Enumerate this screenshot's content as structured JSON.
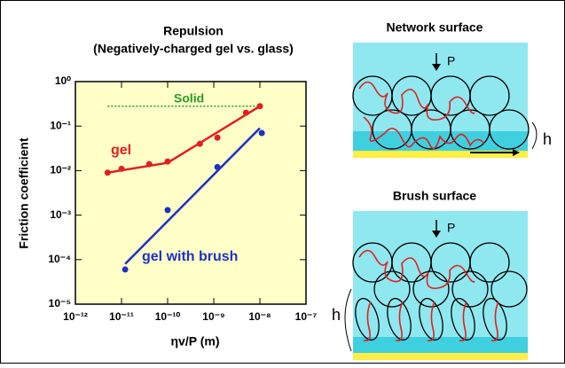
{
  "chart_data": {
    "type": "scatter",
    "title": "Repulsion",
    "subtitle": "(Negatively-charged gel vs. glass)",
    "x_label": "ηv/P (m)",
    "y_label": "Friction coefficient",
    "xscale": "log",
    "yscale": "log",
    "xlim": [
      1e-12,
      1e-07
    ],
    "ylim": [
      1e-05,
      1
    ],
    "xticks": [
      {
        "value": 1e-12,
        "label": "10⁻¹²"
      },
      {
        "value": 1e-11,
        "label": "10⁻¹¹"
      },
      {
        "value": 1e-10,
        "label": "10⁻¹⁰"
      },
      {
        "value": 1e-09,
        "label": "10⁻⁹"
      },
      {
        "value": 1e-08,
        "label": "10⁻⁸"
      },
      {
        "value": 1e-07,
        "label": "10⁻⁷"
      }
    ],
    "yticks": [
      {
        "value": 1e-05,
        "label": "10⁻⁵"
      },
      {
        "value": 0.0001,
        "label": "10⁻⁴"
      },
      {
        "value": 0.001,
        "label": "10⁻³"
      },
      {
        "value": 0.01,
        "label": "10⁻²"
      },
      {
        "value": 0.1,
        "label": "10⁻¹"
      },
      {
        "value": 1,
        "label": "10⁰"
      }
    ],
    "series": [
      {
        "name": "gel",
        "color": "#e02020",
        "x": [
          5e-12,
          1e-11,
          4e-11,
          1e-10,
          5e-10,
          1.2e-09,
          5e-09,
          1e-08
        ],
        "values": [
          0.009,
          0.011,
          0.014,
          0.016,
          0.04,
          0.055,
          0.2,
          0.28
        ],
        "fit": {
          "x": [
            5e-12,
            1e-10,
            1e-08
          ],
          "values": [
            0.009,
            0.015,
            0.28
          ]
        }
      },
      {
        "name": "gel with brush",
        "color": "#2030c0",
        "x": [
          1.2e-11,
          1e-10,
          1.2e-09,
          1.1e-08
        ],
        "values": [
          6e-05,
          0.0013,
          0.012,
          0.07
        ],
        "fit": {
          "x": [
            1.2e-11,
            1e-08
          ],
          "values": [
            8e-05,
            0.09
          ]
        }
      }
    ],
    "reference_line": {
      "name": "Solid",
      "color": "#2a9a2a",
      "value": 0.28,
      "x": [
        5e-12,
        1e-08
      ]
    },
    "plot_background": "#ffffc8"
  },
  "diagrams": [
    {
      "title": "Network surface",
      "load_label": "P",
      "height_label": "h"
    },
    {
      "title": "Brush surface",
      "load_label": "P",
      "height_label": "h"
    }
  ]
}
